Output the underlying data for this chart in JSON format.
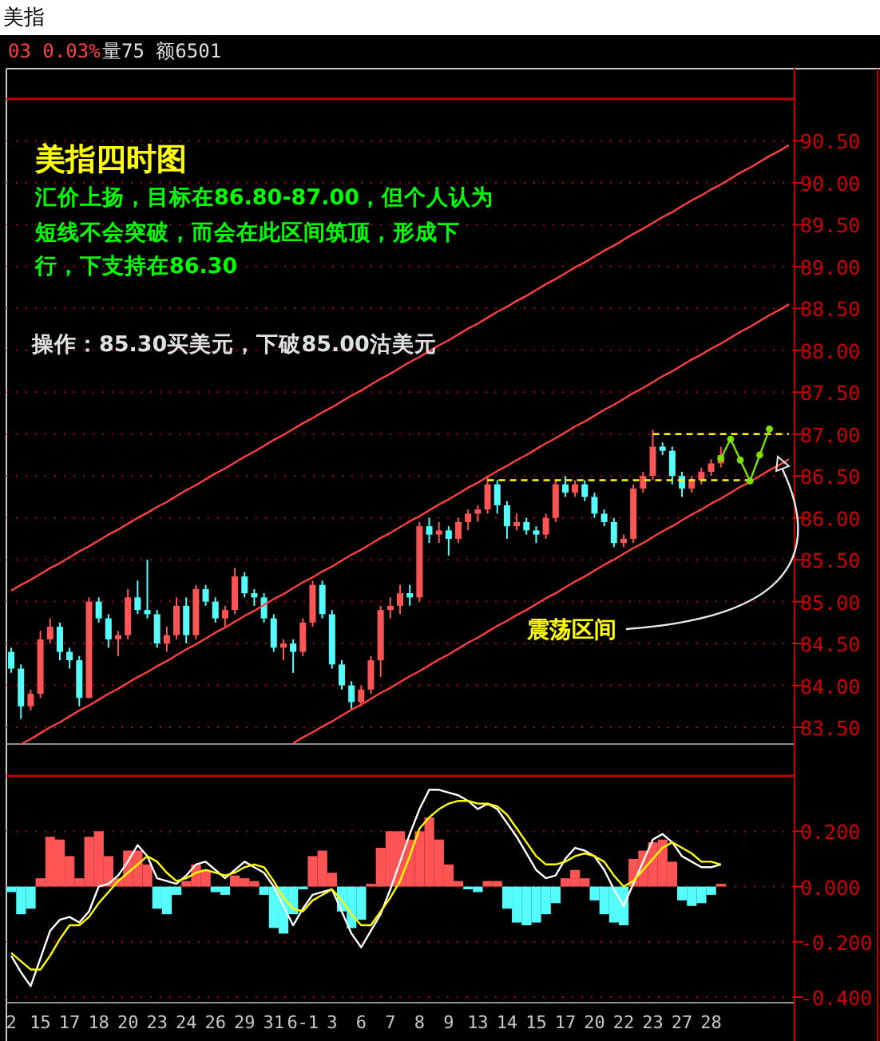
{
  "chart_data": [
    {
      "type": "candlestick",
      "title": "美指",
      "annotations": [
        "03 0.03%",
        "量75 额6501",
        "美指四时图",
        "汇价上扬，目标在86.80-87.00，但个人认为",
        "短线不会突破，而会在此区间筑顶，形成下",
        "行，下支持在86.30",
        "操作：85.30买美元，下破85.00沽美元",
        "震荡区间"
      ],
      "categories": [
        null,
        null,
        null,
        null,
        null,
        null,
        null,
        null,
        null,
        null,
        null,
        null,
        null,
        null,
        null,
        null,
        null,
        null,
        null,
        null,
        null,
        null,
        null,
        null,
        null,
        null,
        null,
        null,
        null,
        null,
        null,
        null,
        null,
        null,
        null,
        null,
        null,
        null,
        null,
        null,
        null,
        null,
        null,
        null,
        null,
        null,
        null,
        null,
        null,
        null,
        null,
        null,
        null,
        null,
        null,
        null,
        null,
        null,
        null,
        null,
        null,
        null,
        null,
        null,
        null,
        null,
        null,
        null,
        null,
        null,
        null,
        null,
        null,
        null,
        null,
        null,
        null,
        null,
        null,
        null,
        null
      ],
      "ylim": [
        83.3,
        91.0
      ],
      "yticks": [
        {
          "value": 83.5,
          "label": "83.50"
        },
        {
          "value": 84,
          "label": "84.00"
        },
        {
          "value": 84.5,
          "label": "84.50"
        },
        {
          "value": 85,
          "label": "85.00"
        },
        {
          "value": 85.5,
          "label": "85.50"
        },
        {
          "value": 86,
          "label": "86.00"
        },
        {
          "value": 86.5,
          "label": "86.50"
        },
        {
          "value": 87,
          "label": "87.00"
        },
        {
          "value": 87.5,
          "label": "87.50"
        },
        {
          "value": 88,
          "label": "88.00"
        },
        {
          "value": 88.5,
          "label": "88.50"
        },
        {
          "value": 89,
          "label": "89.00"
        },
        {
          "value": 89.5,
          "label": "89.50"
        },
        {
          "value": 90,
          "label": "90.00"
        },
        {
          "value": 90.5,
          "label": "90.50"
        }
      ],
      "grid": "y",
      "tick_labels": "y",
      "series": [
        {
          "ohlc": [
            [
              84.4,
              84.45,
              84.15,
              84.2
            ],
            [
              84.2,
              84.25,
              83.6,
              83.75
            ],
            [
              83.75,
              83.95,
              83.7,
              83.9
            ],
            [
              83.9,
              84.65,
              83.85,
              84.55
            ],
            [
              84.55,
              84.8,
              84.5,
              84.7
            ],
            [
              84.7,
              84.75,
              84.3,
              84.4
            ],
            [
              84.4,
              84.45,
              84.2,
              84.3
            ],
            [
              84.3,
              84.35,
              83.75,
              83.85
            ],
            [
              83.85,
              85.05,
              83.85,
              85.0
            ],
            [
              85.0,
              85.05,
              84.75,
              84.8
            ],
            [
              84.8,
              84.85,
              84.45,
              84.55
            ],
            [
              84.55,
              84.65,
              84.35,
              84.6
            ],
            [
              84.6,
              85.15,
              84.55,
              85.05
            ],
            [
              85.05,
              85.25,
              84.85,
              84.9
            ],
            [
              84.9,
              85.5,
              84.8,
              84.85
            ],
            [
              84.85,
              84.9,
              84.45,
              84.5
            ],
            [
              84.5,
              84.7,
              84.4,
              84.6
            ],
            [
              84.6,
              85.05,
              84.55,
              84.95
            ],
            [
              84.95,
              85.05,
              84.5,
              84.6
            ],
            [
              84.6,
              85.2,
              84.55,
              85.15
            ],
            [
              85.15,
              85.2,
              84.95,
              85.0
            ],
            [
              85.0,
              85.05,
              84.75,
              84.8
            ],
            [
              84.8,
              84.95,
              84.7,
              84.9
            ],
            [
              84.9,
              85.4,
              84.85,
              85.3
            ],
            [
              85.3,
              85.35,
              85.05,
              85.1
            ],
            [
              85.1,
              85.15,
              84.95,
              85.05
            ],
            [
              85.05,
              85.1,
              84.75,
              84.8
            ],
            [
              84.8,
              84.85,
              84.4,
              84.45
            ],
            [
              84.45,
              84.55,
              84.3,
              84.5
            ],
            [
              84.5,
              84.55,
              84.15,
              84.4
            ],
            [
              84.4,
              84.8,
              84.35,
              84.75
            ],
            [
              84.75,
              85.25,
              84.7,
              85.2
            ],
            [
              85.2,
              85.25,
              84.8,
              84.85
            ],
            [
              84.85,
              84.9,
              84.2,
              84.25
            ],
            [
              84.25,
              84.3,
              83.95,
              84.0
            ],
            [
              84.0,
              84.05,
              83.7,
              83.8
            ],
            [
              83.8,
              84.0,
              83.75,
              83.95
            ],
            [
              83.95,
              84.35,
              83.9,
              84.3
            ],
            [
              84.3,
              84.95,
              84.1,
              84.9
            ],
            [
              84.9,
              85.05,
              84.8,
              84.95
            ],
            [
              84.95,
              85.2,
              84.85,
              85.1
            ],
            [
              85.1,
              85.2,
              84.95,
              85.05
            ],
            [
              85.05,
              85.95,
              85.0,
              85.9
            ],
            [
              85.9,
              86.0,
              85.7,
              85.8
            ],
            [
              85.8,
              85.95,
              85.7,
              85.85
            ],
            [
              85.85,
              85.9,
              85.55,
              85.75
            ],
            [
              85.75,
              86.0,
              85.7,
              85.95
            ],
            [
              85.95,
              86.1,
              85.85,
              86.05
            ],
            [
              86.05,
              86.15,
              85.95,
              86.1
            ],
            [
              86.1,
              86.5,
              86.05,
              86.4
            ],
            [
              86.4,
              86.45,
              86.05,
              86.15
            ],
            [
              86.15,
              86.2,
              85.75,
              85.9
            ],
            [
              85.9,
              86.05,
              85.85,
              85.95
            ],
            [
              85.95,
              86.0,
              85.8,
              85.85
            ],
            [
              85.85,
              85.9,
              85.7,
              85.8
            ],
            [
              85.8,
              86.05,
              85.75,
              86.0
            ],
            [
              86.0,
              86.45,
              85.95,
              86.4
            ],
            [
              86.4,
              86.5,
              86.25,
              86.3
            ],
            [
              86.3,
              86.45,
              86.25,
              86.4
            ],
            [
              86.4,
              86.45,
              86.2,
              86.25
            ],
            [
              86.25,
              86.3,
              86.0,
              86.05
            ],
            [
              86.05,
              86.1,
              85.9,
              85.95
            ],
            [
              85.95,
              86.0,
              85.65,
              85.7
            ],
            [
              85.7,
              85.8,
              85.65,
              85.75
            ],
            [
              85.75,
              86.4,
              85.7,
              86.35
            ],
            [
              86.35,
              86.55,
              86.3,
              86.5
            ],
            [
              86.5,
              87.05,
              86.45,
              86.85
            ],
            [
              86.85,
              86.9,
              86.75,
              86.8
            ],
            [
              86.8,
              86.85,
              86.4,
              86.5
            ],
            [
              86.5,
              86.55,
              86.25,
              86.35
            ],
            [
              86.35,
              86.5,
              86.3,
              86.45
            ],
            [
              86.45,
              86.6,
              86.4,
              86.55
            ],
            [
              86.55,
              86.7,
              86.5,
              86.65
            ],
            [
              86.65,
              86.85,
              86.6,
              86.75
            ],
            null,
            null,
            null,
            null,
            null,
            null,
            null
          ],
          "colors": [
            "#54fcfc",
            "#54fcfc",
            "#ff5454",
            "#ff5454",
            "#ff5454",
            "#54fcfc",
            "#54fcfc",
            "#54fcfc",
            "#ff5454",
            "#54fcfc",
            "#54fcfc",
            "#ff5454",
            "#ff5454",
            "#54fcfc",
            "#54fcfc",
            "#54fcfc",
            "#ff5454",
            "#ff5454",
            "#54fcfc",
            "#ff5454",
            "#54fcfc",
            "#54fcfc",
            "#ff5454",
            "#ff5454",
            "#54fcfc",
            "#54fcfc",
            "#54fcfc",
            "#54fcfc",
            "#ff5454",
            "#54fcfc",
            "#ff5454",
            "#ff5454",
            "#54fcfc",
            "#54fcfc",
            "#54fcfc",
            "#54fcfc",
            "#ff5454",
            "#ff5454",
            "#ff5454",
            "#ff5454",
            "#ff5454",
            "#54fcfc",
            "#ff5454",
            "#54fcfc",
            "#ff5454",
            "#54fcfc",
            "#ff5454",
            "#ff5454",
            "#ff5454",
            "#ff5454",
            "#54fcfc",
            "#54fcfc",
            "#ff5454",
            "#54fcfc",
            "#54fcfc",
            "#ff5454",
            "#ff5454",
            "#54fcfc",
            "#ff5454",
            "#54fcfc",
            "#54fcfc",
            "#54fcfc",
            "#54fcfc",
            "#ff5454",
            "#ff5454",
            "#ff5454",
            "#ff5454",
            "#54fcfc",
            "#54fcfc",
            "#54fcfc",
            "#ff5454",
            "#ff5454",
            "#ff5454",
            "#ff5454",
            null,
            null,
            null,
            null,
            null,
            null,
            null
          ]
        },
        {
          "type": "line",
          "color": "#ff4040",
          "values": [
            85.13,
            85.2,
            85.26,
            85.33,
            85.4,
            85.46,
            85.53,
            85.6,
            85.66,
            85.73,
            85.8,
            85.86,
            85.93,
            86.0,
            86.06,
            86.13,
            86.19,
            86.26,
            86.33,
            86.39,
            86.46,
            86.53,
            86.59,
            86.66,
            86.73,
            86.79,
            86.86,
            86.93,
            86.99,
            87.06,
            87.13,
            87.19,
            87.26,
            87.32,
            87.39,
            87.46,
            87.52,
            87.59,
            87.66,
            87.72,
            87.79,
            87.86,
            87.92,
            87.99,
            88.06,
            88.12,
            88.19,
            88.26,
            88.32,
            88.39,
            88.46,
            88.52,
            88.59,
            88.65,
            88.72,
            88.79,
            88.85,
            88.92,
            88.99,
            89.05,
            89.12,
            89.19,
            89.25,
            89.32,
            89.39,
            89.45,
            89.52,
            89.59,
            89.65,
            89.72,
            89.79,
            89.85,
            89.92,
            89.98,
            90.05,
            90.12,
            90.18,
            90.25,
            90.32,
            90.38,
            90.45
          ]
        },
        {
          "type": "line",
          "color": "#ff4040",
          "values": [
            null,
            83.3,
            83.36,
            83.43,
            83.5,
            83.56,
            83.63,
            83.7,
            83.76,
            83.83,
            83.9,
            83.96,
            84.03,
            84.1,
            84.16,
            84.23,
            84.29,
            84.36,
            84.43,
            84.49,
            84.56,
            84.63,
            84.69,
            84.76,
            84.83,
            84.89,
            84.96,
            85.03,
            85.09,
            85.16,
            85.23,
            85.29,
            85.36,
            85.42,
            85.49,
            85.56,
            85.62,
            85.69,
            85.76,
            85.82,
            85.89,
            85.96,
            86.02,
            86.09,
            86.16,
            86.22,
            86.29,
            86.36,
            86.42,
            86.49,
            86.56,
            86.62,
            86.69,
            86.75,
            86.82,
            86.89,
            86.95,
            87.02,
            87.09,
            87.15,
            87.22,
            87.29,
            87.35,
            87.42,
            87.49,
            87.55,
            87.62,
            87.69,
            87.75,
            87.82,
            87.89,
            87.95,
            88.02,
            88.08,
            88.15,
            88.22,
            88.28,
            88.35,
            88.42,
            88.48,
            88.55
          ]
        },
        {
          "type": "line",
          "color": "#ff4040",
          "values": [
            null,
            null,
            null,
            null,
            null,
            null,
            null,
            null,
            null,
            null,
            null,
            null,
            null,
            null,
            null,
            null,
            null,
            null,
            null,
            null,
            null,
            null,
            null,
            null,
            null,
            null,
            null,
            null,
            null,
            83.31,
            83.38,
            83.44,
            83.51,
            83.57,
            83.64,
            83.71,
            83.77,
            83.84,
            83.91,
            83.97,
            84.04,
            84.11,
            84.17,
            84.24,
            84.31,
            84.37,
            84.44,
            84.51,
            84.57,
            84.64,
            84.71,
            84.77,
            84.84,
            84.9,
            84.97,
            85.04,
            85.1,
            85.17,
            85.24,
            85.3,
            85.37,
            85.44,
            85.5,
            85.57,
            85.64,
            85.7,
            85.77,
            85.84,
            85.9,
            85.97,
            86.04,
            86.1,
            86.17,
            86.23,
            86.3,
            86.37,
            86.43,
            86.5,
            86.57,
            86.63,
            86.7
          ]
        },
        {
          "type": "line",
          "color": "#ffff00",
          "line_style": "dashed",
          "values": [
            null,
            null,
            null,
            null,
            null,
            null,
            null,
            null,
            null,
            null,
            null,
            null,
            null,
            null,
            null,
            null,
            null,
            null,
            null,
            null,
            null,
            null,
            null,
            null,
            null,
            null,
            null,
            null,
            null,
            null,
            null,
            null,
            null,
            null,
            null,
            null,
            null,
            null,
            null,
            null,
            null,
            null,
            null,
            null,
            null,
            null,
            null,
            null,
            null,
            86.45,
            86.45,
            86.45,
            86.45,
            86.45,
            86.45,
            86.45,
            86.45,
            86.45,
            86.45,
            86.45,
            86.45,
            86.45,
            86.45,
            86.45,
            86.45,
            86.45,
            86.45,
            86.45,
            86.45,
            86.45,
            86.45,
            86.45,
            86.45,
            86.45,
            86.45,
            86.45,
            86.45,
            null,
            null,
            null,
            null
          ]
        },
        {
          "type": "line",
          "color": "#ffff00",
          "line_style": "dashed",
          "values": [
            null,
            null,
            null,
            null,
            null,
            null,
            null,
            null,
            null,
            null,
            null,
            null,
            null,
            null,
            null,
            null,
            null,
            null,
            null,
            null,
            null,
            null,
            null,
            null,
            null,
            null,
            null,
            null,
            null,
            null,
            null,
            null,
            null,
            null,
            null,
            null,
            null,
            null,
            null,
            null,
            null,
            null,
            null,
            null,
            null,
            null,
            null,
            null,
            null,
            null,
            null,
            null,
            null,
            null,
            null,
            null,
            null,
            null,
            null,
            null,
            null,
            null,
            null,
            null,
            null,
            null,
            87.0,
            87.0,
            87.0,
            87.0,
            87.0,
            87.0,
            87.0,
            87.0,
            87.0,
            87.0,
            87.0,
            87.0,
            87.0,
            87.0,
            87.0
          ]
        },
        {
          "type": "line",
          "color": "#80e000",
          "marker": "circle",
          "values": [
            null,
            null,
            null,
            null,
            null,
            null,
            null,
            null,
            null,
            null,
            null,
            null,
            null,
            null,
            null,
            null,
            null,
            null,
            null,
            null,
            null,
            null,
            null,
            null,
            null,
            null,
            null,
            null,
            null,
            null,
            null,
            null,
            null,
            null,
            null,
            null,
            null,
            null,
            null,
            null,
            null,
            null,
            null,
            null,
            null,
            null,
            null,
            null,
            null,
            null,
            null,
            null,
            null,
            null,
            null,
            null,
            null,
            null,
            null,
            null,
            null,
            null,
            null,
            null,
            null,
            null,
            null,
            null,
            null,
            null,
            null,
            null,
            null,
            86.71,
            86.94,
            86.69,
            86.44,
            86.75,
            87.06,
            null,
            null
          ]
        }
      ]
    },
    {
      "type": "bar",
      "categories": [
        "2",
        null,
        null,
        "15",
        null,
        null,
        "17",
        null,
        null,
        "18",
        null,
        null,
        "20",
        null,
        null,
        "23",
        null,
        null,
        "24",
        null,
        null,
        "26",
        null,
        null,
        "29",
        null,
        null,
        "31",
        null,
        null,
        "6-1",
        null,
        null,
        "3",
        null,
        null,
        "6",
        null,
        null,
        "7",
        null,
        null,
        "8",
        null,
        null,
        "9",
        null,
        null,
        "13",
        null,
        null,
        "14",
        null,
        null,
        "15",
        null,
        null,
        "17",
        null,
        null,
        "20",
        null,
        null,
        "22",
        null,
        null,
        "23",
        null,
        null,
        "27",
        null,
        null,
        "28",
        null,
        null,
        null,
        null,
        null,
        null,
        null,
        null
      ],
      "ylim": [
        -0.42,
        0.4
      ],
      "yticks": [
        {
          "value": -0.4,
          "label": "-0.400"
        },
        {
          "value": -0.2,
          "label": "-0.200"
        },
        {
          "value": 0,
          "label": "0.000"
        },
        {
          "value": 0.2,
          "label": "0.200"
        }
      ],
      "grid": "y",
      "series": [
        {
          "values": [
            -0.02,
            -0.1,
            -0.08,
            0.03,
            0.18,
            0.17,
            0.11,
            0.03,
            0.18,
            0.2,
            0.11,
            0.03,
            0.13,
            0.13,
            0.08,
            -0.08,
            -0.1,
            -0.03,
            0.02,
            0.08,
            0.06,
            -0.02,
            -0.03,
            0.04,
            0.03,
            0.02,
            -0.03,
            -0.15,
            -0.17,
            -0.1,
            -0.01,
            0.11,
            0.13,
            0.05,
            -0.09,
            -0.15,
            -0.12,
            0.01,
            0.14,
            0.2,
            0.2,
            0.17,
            0.2,
            0.25,
            0.17,
            0.08,
            0.02,
            -0.01,
            -0.02,
            0.02,
            0.02,
            -0.08,
            -0.13,
            -0.14,
            -0.13,
            -0.1,
            -0.06,
            0.03,
            0.06,
            0.03,
            -0.05,
            -0.1,
            -0.13,
            -0.14,
            0.1,
            0.13,
            0.16,
            0.17,
            0.09,
            -0.05,
            -0.07,
            -0.06,
            -0.03,
            0.01,
            null,
            null,
            null,
            null,
            null,
            null,
            null
          ],
          "colors": [
            "#54fcfc",
            "#54fcfc",
            "#54fcfc",
            "#ff5454",
            "#ff5454",
            "#ff5454",
            "#ff5454",
            "#ff5454",
            "#ff5454",
            "#ff5454",
            "#ff5454",
            "#ff5454",
            "#ff5454",
            "#ff5454",
            "#ff5454",
            "#54fcfc",
            "#54fcfc",
            "#54fcfc",
            "#ff5454",
            "#ff5454",
            "#ff5454",
            "#54fcfc",
            "#54fcfc",
            "#ff5454",
            "#ff5454",
            "#ff5454",
            "#54fcfc",
            "#54fcfc",
            "#54fcfc",
            "#54fcfc",
            "#54fcfc",
            "#ff5454",
            "#ff5454",
            "#ff5454",
            "#54fcfc",
            "#54fcfc",
            "#54fcfc",
            "#ff5454",
            "#ff5454",
            "#ff5454",
            "#ff5454",
            "#ff5454",
            "#ff5454",
            "#ff5454",
            "#ff5454",
            "#ff5454",
            "#ff5454",
            "#54fcfc",
            "#54fcfc",
            "#ff5454",
            "#ff5454",
            "#54fcfc",
            "#54fcfc",
            "#54fcfc",
            "#54fcfc",
            "#54fcfc",
            "#54fcfc",
            "#ff5454",
            "#ff5454",
            "#ff5454",
            "#54fcfc",
            "#54fcfc",
            "#54fcfc",
            "#54fcfc",
            "#ff5454",
            "#ff5454",
            "#ff5454",
            "#ff5454",
            "#ff5454",
            "#54fcfc",
            "#54fcfc",
            "#54fcfc",
            "#54fcfc",
            "#ff5454",
            null,
            null,
            null,
            null,
            null,
            null,
            null
          ]
        },
        {
          "type": "line",
          "color": "#ffffff",
          "values": [
            -0.25,
            -0.31,
            -0.36,
            -0.26,
            -0.16,
            -0.12,
            -0.11,
            -0.13,
            -0.09,
            0.0,
            0.01,
            0.04,
            0.09,
            0.15,
            0.11,
            0.03,
            0.02,
            0.01,
            0.04,
            0.08,
            0.09,
            0.06,
            0.03,
            0.06,
            0.09,
            0.07,
            0.05,
            0.0,
            -0.07,
            -0.14,
            -0.08,
            -0.03,
            -0.02,
            -0.01,
            -0.09,
            -0.17,
            -0.22,
            -0.16,
            -0.1,
            -0.01,
            0.09,
            0.19,
            0.28,
            0.35,
            0.35,
            0.34,
            0.33,
            0.31,
            0.28,
            0.3,
            0.28,
            0.23,
            0.18,
            0.12,
            0.06,
            0.03,
            0.04,
            0.1,
            0.14,
            0.13,
            0.11,
            0.06,
            -0.01,
            -0.07,
            0.01,
            0.09,
            0.17,
            0.19,
            0.16,
            0.11,
            0.09,
            0.07,
            0.07,
            0.08,
            null,
            null,
            null,
            null,
            null,
            null,
            null
          ]
        },
        {
          "type": "line",
          "color": "#ffff00",
          "values": [
            -0.24,
            -0.27,
            -0.3,
            -0.3,
            -0.25,
            -0.19,
            -0.14,
            -0.14,
            -0.11,
            -0.06,
            -0.02,
            0.02,
            0.05,
            0.08,
            0.11,
            0.09,
            0.05,
            0.02,
            0.03,
            0.05,
            0.06,
            0.05,
            0.04,
            0.05,
            0.07,
            0.08,
            0.07,
            0.02,
            -0.04,
            -0.08,
            -0.09,
            -0.05,
            -0.03,
            -0.01,
            -0.05,
            -0.1,
            -0.14,
            -0.14,
            -0.09,
            -0.04,
            0.02,
            0.11,
            0.21,
            0.25,
            0.28,
            0.3,
            0.31,
            0.31,
            0.3,
            0.3,
            0.29,
            0.26,
            0.21,
            0.16,
            0.11,
            0.08,
            0.08,
            0.09,
            0.11,
            0.12,
            0.11,
            0.09,
            0.04,
            0.0,
            0.02,
            0.06,
            0.1,
            0.14,
            0.16,
            0.14,
            0.12,
            0.09,
            0.09,
            0.08,
            null,
            null,
            null,
            null,
            null,
            null,
            null
          ]
        }
      ]
    }
  ]
}
